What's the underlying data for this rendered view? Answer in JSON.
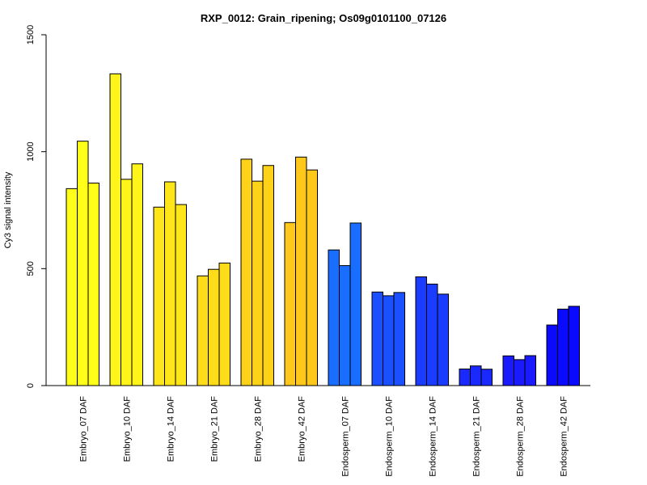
{
  "chart_data": {
    "type": "bar",
    "title": "RXP_0012: Grain_ripening; Os09g0101100_07126",
    "xlabel": "",
    "ylabel": "Cy3 signal intensity",
    "ylim": [
      0,
      1500
    ],
    "yticks": [
      0,
      500,
      1000,
      1500
    ],
    "grid": false,
    "categories": [
      "Embryo_07 DAF",
      "Embryo_10 DAF",
      "Embryo_14 DAF",
      "Embryo_21 DAF",
      "Embryo_28 DAF",
      "Embryo_42 DAF",
      "Endosperm_07 DAF",
      "Endosperm_10 DAF",
      "Endosperm_14 DAF",
      "Endosperm_21 DAF",
      "Endosperm_28 DAF",
      "Endosperm_42 DAF"
    ],
    "colors": [
      "#ffff1a",
      "#fff51a",
      "#ffe61a",
      "#ffdc1a",
      "#ffd21a",
      "#ffc81a",
      "#1a6eff",
      "#1a50ff",
      "#1a3cff",
      "#1a2aff",
      "#1a1aff",
      "#0a0aff"
    ],
    "groups": [
      [
        842,
        1045,
        866
      ],
      [
        1333,
        882,
        948
      ],
      [
        763,
        871,
        774
      ],
      [
        469,
        497,
        524
      ],
      [
        968,
        874,
        941
      ],
      [
        697,
        977,
        922
      ],
      [
        580,
        513,
        695
      ],
      [
        400,
        384,
        398
      ],
      [
        465,
        434,
        391
      ],
      [
        71,
        84,
        70
      ],
      [
        127,
        111,
        128
      ],
      [
        259,
        327,
        339
      ]
    ]
  }
}
